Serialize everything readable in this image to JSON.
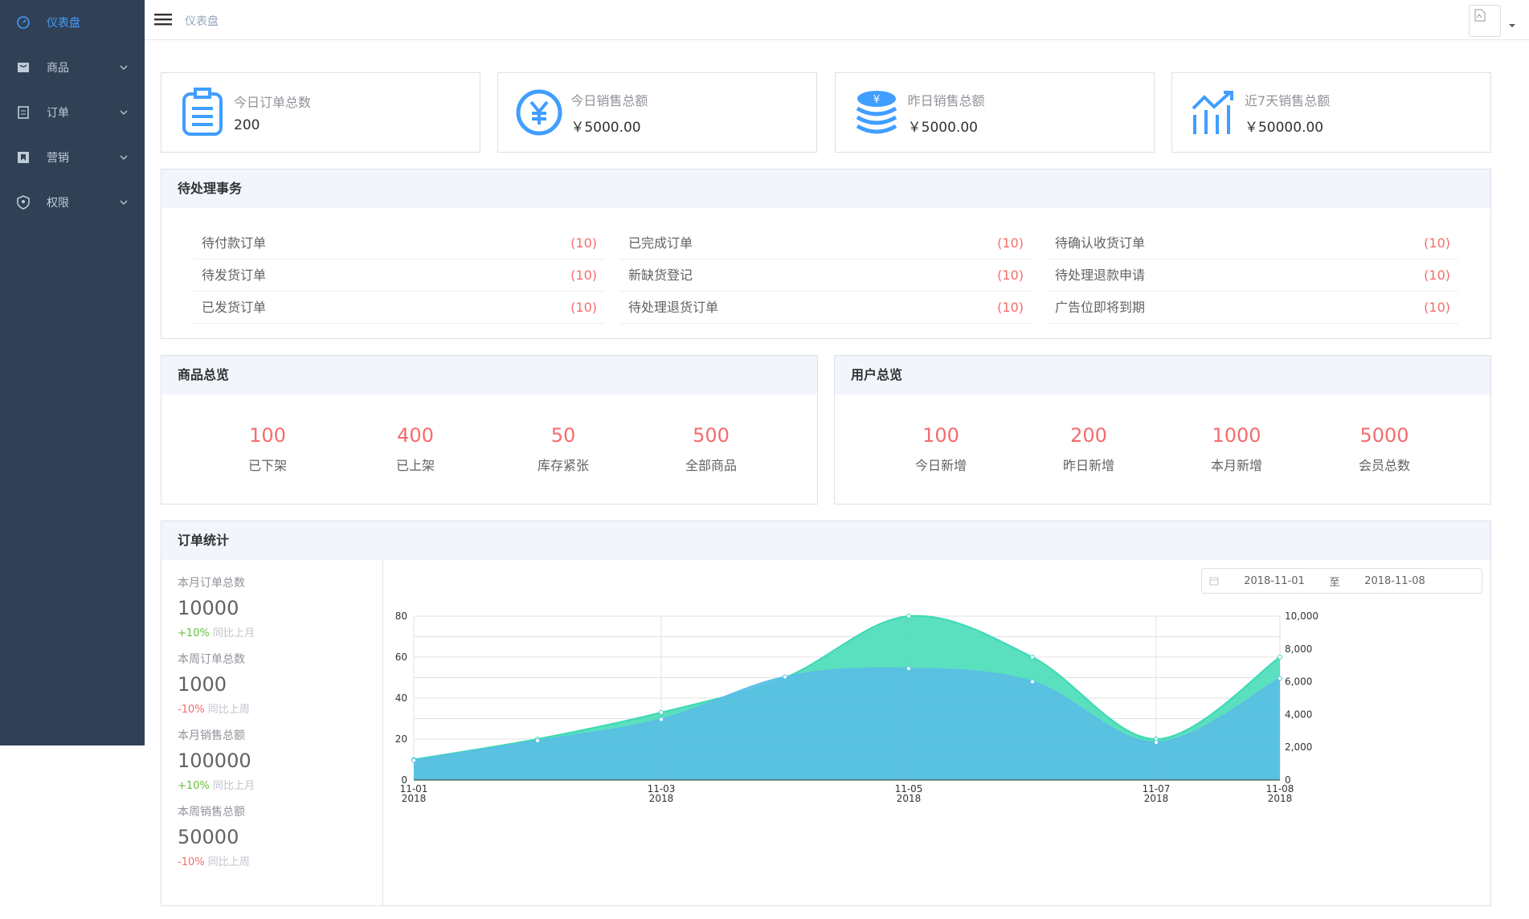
{
  "sidebar": {
    "items": [
      {
        "label": "仪表盘",
        "icon": "dashboard-icon",
        "active": true,
        "expandable": false
      },
      {
        "label": "商品",
        "icon": "product-icon",
        "active": false,
        "expandable": true
      },
      {
        "label": "订单",
        "icon": "order-icon",
        "active": false,
        "expandable": true
      },
      {
        "label": "营销",
        "icon": "marketing-icon",
        "active": false,
        "expandable": true
      },
      {
        "label": "权限",
        "icon": "permission-icon",
        "active": false,
        "expandable": true
      }
    ]
  },
  "header": {
    "breadcrumb": "仪表盘"
  },
  "stats": [
    {
      "title": "今日订单总数",
      "value": "200",
      "icon": "clipboard-icon"
    },
    {
      "title": "今日销售总额",
      "value": "￥5000.00",
      "icon": "yen-circle-icon"
    },
    {
      "title": "昨日销售总额",
      "value": "￥5000.00",
      "icon": "coins-icon"
    },
    {
      "title": "近7天销售总额",
      "value": "￥50000.00",
      "icon": "trend-chart-icon"
    }
  ],
  "todo": {
    "title": "待处理事务",
    "columns": [
      [
        {
          "label": "待付款订单",
          "count": "(10)"
        },
        {
          "label": "待发货订单",
          "count": "(10)"
        },
        {
          "label": "已发货订单",
          "count": "(10)"
        }
      ],
      [
        {
          "label": "已完成订单",
          "count": "(10)"
        },
        {
          "label": "新缺货登记",
          "count": "(10)"
        },
        {
          "label": "待处理退货订单",
          "count": "(10)"
        }
      ],
      [
        {
          "label": "待确认收货订单",
          "count": "(10)"
        },
        {
          "label": "待处理退款申请",
          "count": "(10)"
        },
        {
          "label": "广告位即将到期",
          "count": "(10)"
        }
      ]
    ]
  },
  "product_overview": {
    "title": "商品总览",
    "items": [
      {
        "num": "100",
        "label": "已下架"
      },
      {
        "num": "400",
        "label": "已上架"
      },
      {
        "num": "50",
        "label": "库存紧张"
      },
      {
        "num": "500",
        "label": "全部商品"
      }
    ]
  },
  "user_overview": {
    "title": "用户总览",
    "items": [
      {
        "num": "100",
        "label": "今日新增"
      },
      {
        "num": "200",
        "label": "昨日新增"
      },
      {
        "num": "1000",
        "label": "本月新增"
      },
      {
        "num": "5000",
        "label": "会员总数"
      }
    ]
  },
  "order_stats": {
    "title": "订单统计",
    "blocks": [
      {
        "title": "本月订单总数",
        "value": "10000",
        "pct": "+10%",
        "dir": "up",
        "cmp": "同比上月"
      },
      {
        "title": "本周订单总数",
        "value": "1000",
        "pct": "-10%",
        "dir": "down",
        "cmp": "同比上周"
      },
      {
        "title": "本月销售总额",
        "value": "100000",
        "pct": "+10%",
        "dir": "up",
        "cmp": "同比上月"
      },
      {
        "title": "本周销售总额",
        "value": "50000",
        "pct": "-10%",
        "dir": "down",
        "cmp": "同比上周"
      }
    ],
    "date_start": "2018-11-01",
    "date_sep": "至",
    "date_end": "2018-11-08"
  },
  "chart_data": {
    "type": "area",
    "x": [
      "2018-11-01",
      "2018-11-02",
      "2018-11-03",
      "2018-11-04",
      "2018-11-05",
      "2018-11-06",
      "2018-11-07",
      "2018-11-08"
    ],
    "x_tick_labels": [
      {
        "date": "2018-11-01",
        "line1": "11-01",
        "line2": "2018"
      },
      {
        "date": "2018-11-03",
        "line1": "11-03",
        "line2": "2018"
      },
      {
        "date": "2018-11-05",
        "line1": "11-05",
        "line2": "2018"
      },
      {
        "date": "2018-11-07",
        "line1": "11-07",
        "line2": "2018"
      },
      {
        "date": "2018-11-08",
        "line1": "11-08",
        "line2": "2018"
      }
    ],
    "series": [
      {
        "values": [
          10,
          20,
          33,
          50,
          80,
          60,
          20,
          60
        ],
        "axis": "left",
        "color": "#3dd9b4"
      },
      {
        "values": [
          1200,
          2400,
          3700,
          6300,
          6800,
          6000,
          2300,
          6200
        ],
        "axis": "right",
        "color": "#5bbde6"
      }
    ],
    "y_left": {
      "min": 0,
      "max": 80,
      "ticks": [
        0,
        20,
        40,
        60,
        80
      ]
    },
    "y_right": {
      "min": 0,
      "max": 10000,
      "ticks": [
        "0",
        "2,000",
        "4,000",
        "6,000",
        "8,000",
        "10,000"
      ]
    },
    "grid": true
  }
}
